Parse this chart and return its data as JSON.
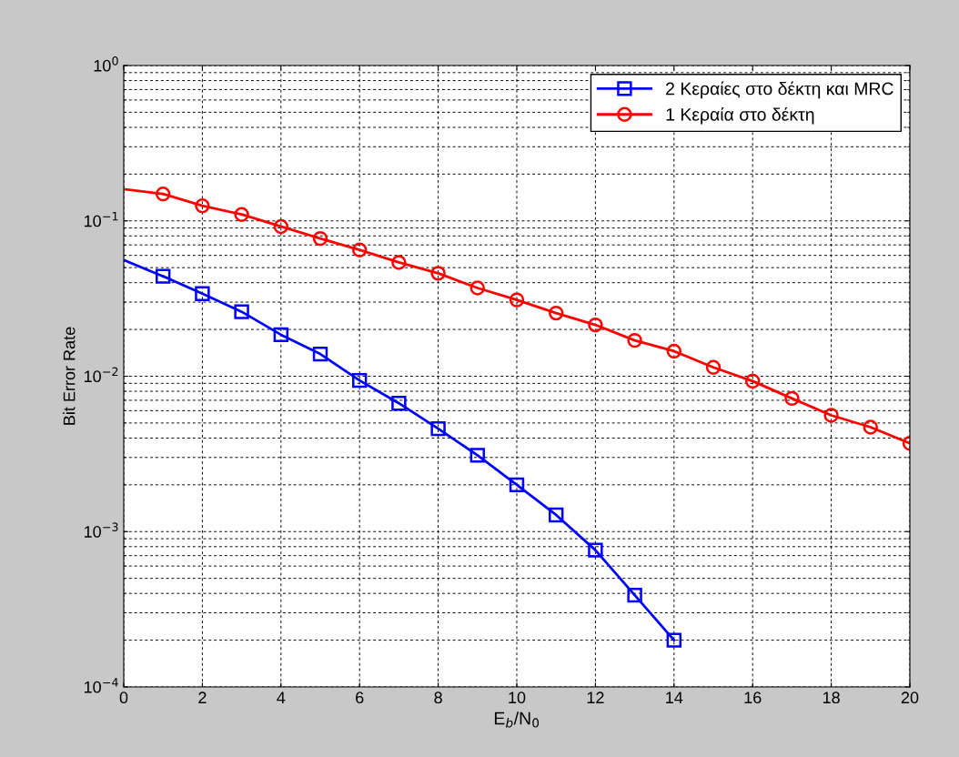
{
  "chart_data": {
    "type": "line",
    "xlabel": "E$_{b}$/N$_{0}$",
    "ylabel": "Bit Error Rate",
    "log": "y",
    "xlim": [
      0,
      20
    ],
    "xticks": [
      0,
      2,
      4,
      6,
      8,
      10,
      12,
      14,
      16,
      18,
      20
    ],
    "ylim": [
      0.0001,
      1
    ],
    "yticks": [
      {
        "value": 0.0001,
        "label": "10$^{−4}$"
      },
      {
        "value": 0.001,
        "label": "10$^{−3}$"
      },
      {
        "value": 0.01,
        "label": "10$^{−2}$"
      },
      {
        "value": 0.1,
        "label": "10$^{−1}$"
      },
      {
        "value": 1,
        "label": "10$^{0}$"
      }
    ],
    "grid": true,
    "legend": "top right",
    "line_style": "solid",
    "series": [
      {
        "name": "2 Κεραίες στο δέκτη και MRC",
        "color": "#0000ff",
        "marker": "square",
        "x": [
          1,
          2,
          3,
          4,
          5,
          6,
          7,
          8,
          9,
          10,
          11,
          12,
          13,
          14
        ],
        "values": [
          0.044,
          0.034,
          0.026,
          0.0185,
          0.0139,
          0.0094,
          0.0067,
          0.0046,
          0.0031,
          0.002,
          0.00128,
          0.00076,
          0.00039,
          0.0002
        ]
      },
      {
        "name": "1 Κεραία στο δέκτη",
        "color": "#ff0000",
        "marker": "circle",
        "x": [
          1,
          2,
          3,
          4,
          5,
          6,
          7,
          8,
          9,
          10,
          11,
          12,
          13,
          14,
          15,
          16,
          17,
          18,
          19,
          20
        ],
        "values": [
          0.149,
          0.125,
          0.11,
          0.092,
          0.077,
          0.065,
          0.054,
          0.046,
          0.037,
          0.031,
          0.0255,
          0.0214,
          0.017,
          0.0145,
          0.0114,
          0.0093,
          0.0072,
          0.0056,
          0.0047,
          0.0037
        ]
      },
      {
        "color": "#0000ff",
        "marker": "none",
        "x": [
          0,
          1
        ],
        "values": [
          0.056,
          0.044
        ]
      },
      {
        "color": "#ff0000",
        "marker": "none",
        "x": [
          0,
          1
        ],
        "values": [
          0.16,
          0.149
        ]
      }
    ]
  }
}
